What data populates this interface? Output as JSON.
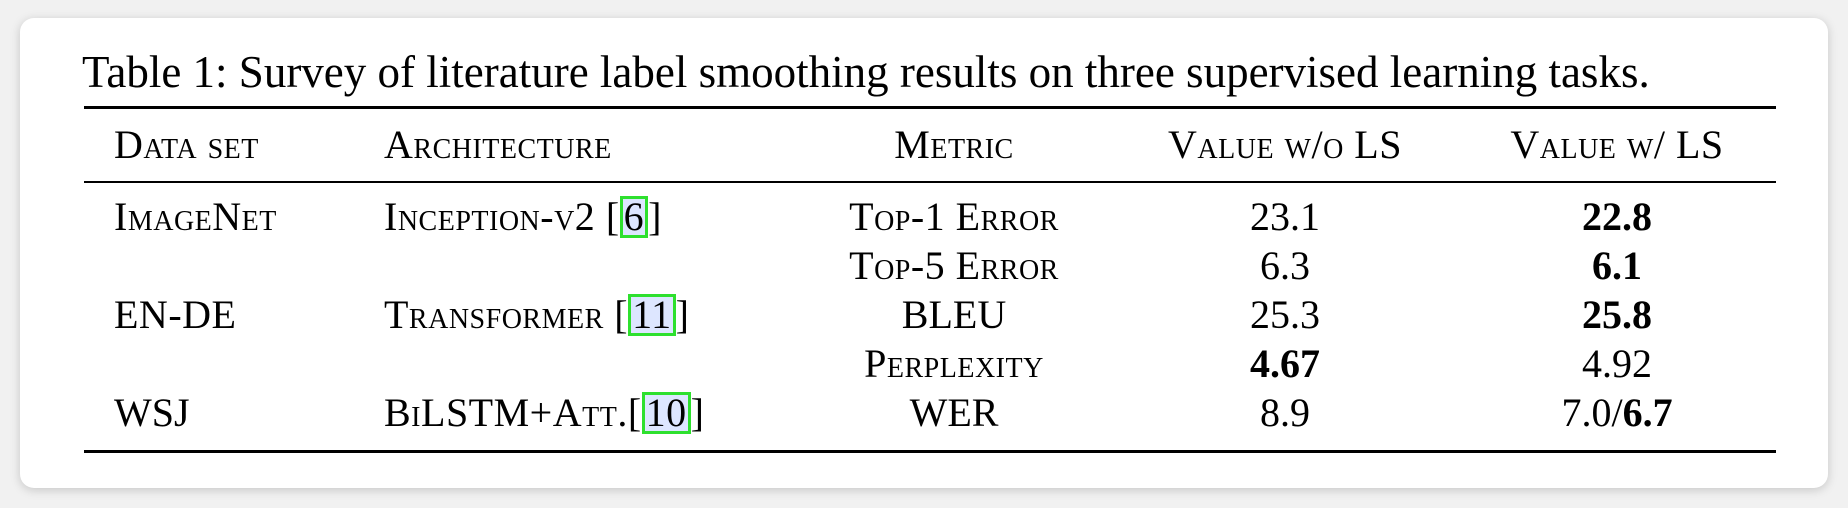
{
  "caption": "Table 1: Survey of literature label smoothing results on three supervised learning tasks.",
  "headers": {
    "dataset": "Data set",
    "architecture": "Architecture",
    "metric": "Metric",
    "value_without": "Value w/o LS",
    "value_with": "Value w/ LS"
  },
  "rows": [
    {
      "dataset": "ImageNet",
      "architecture": "Inception-v2",
      "ref": "6",
      "metric": "Top-1 Error",
      "value_without": "23.1",
      "value_with": "22.8",
      "best": "with"
    },
    {
      "dataset": "",
      "architecture": "",
      "ref": "",
      "metric": "Top-5 Error",
      "value_without": "6.3",
      "value_with": "6.1",
      "best": "with"
    },
    {
      "dataset": "EN-DE",
      "architecture": "Transformer",
      "ref": "11",
      "metric": "BLEU",
      "value_without": "25.3",
      "value_with": "25.8",
      "best": "with"
    },
    {
      "dataset": "",
      "architecture": "",
      "ref": "",
      "metric": "Perplexity",
      "value_without": "4.67",
      "value_with": "4.92",
      "best": "without"
    },
    {
      "dataset": "WSJ",
      "architecture": "BiLSTM+Att.",
      "ref": "10",
      "metric": "WER",
      "value_without": "8.9",
      "value_with_plain": "7.0/",
      "value_with_bold": "6.7",
      "best": "with"
    }
  ]
}
